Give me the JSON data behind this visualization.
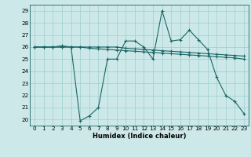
{
  "title": "",
  "xlabel": "Humidex (Indice chaleur)",
  "x": [
    0,
    1,
    2,
    3,
    4,
    5,
    6,
    7,
    8,
    9,
    10,
    11,
    12,
    13,
    14,
    15,
    16,
    17,
    18,
    19,
    20,
    21,
    22,
    23
  ],
  "line1": [
    26,
    26,
    26,
    26.1,
    26,
    19.9,
    20.3,
    21.0,
    25.0,
    25.0,
    26.5,
    26.5,
    26.0,
    25.0,
    29.0,
    26.5,
    26.6,
    27.4,
    26.6,
    25.8,
    23.5,
    22.0,
    21.5,
    20.5
  ],
  "line2": [
    26.0,
    26.0,
    26.0,
    26.0,
    26.0,
    26.0,
    25.9,
    25.85,
    25.8,
    25.75,
    25.7,
    25.65,
    25.6,
    25.55,
    25.5,
    25.45,
    25.4,
    25.35,
    25.3,
    25.25,
    25.2,
    25.15,
    25.1,
    25.0
  ],
  "line3": [
    26.0,
    26.0,
    26.0,
    26.0,
    26.0,
    26.0,
    26.0,
    26.0,
    26.0,
    26.0,
    25.9,
    25.85,
    25.8,
    25.75,
    25.7,
    25.65,
    25.6,
    25.55,
    25.5,
    25.45,
    25.4,
    25.35,
    25.3,
    25.25
  ],
  "bg_color": "#cde8e8",
  "grid_color": "#9dcece",
  "line_color": "#1a6666",
  "ylim": [
    19.5,
    29.5
  ],
  "xlim": [
    -0.5,
    23.5
  ],
  "yticks": [
    20,
    21,
    22,
    23,
    24,
    25,
    26,
    27,
    28,
    29
  ],
  "xticks": [
    0,
    1,
    2,
    3,
    4,
    5,
    6,
    7,
    8,
    9,
    10,
    11,
    12,
    13,
    14,
    15,
    16,
    17,
    18,
    19,
    20,
    21,
    22,
    23
  ],
  "tick_fontsize": 5.2,
  "xlabel_fontsize": 6.0
}
